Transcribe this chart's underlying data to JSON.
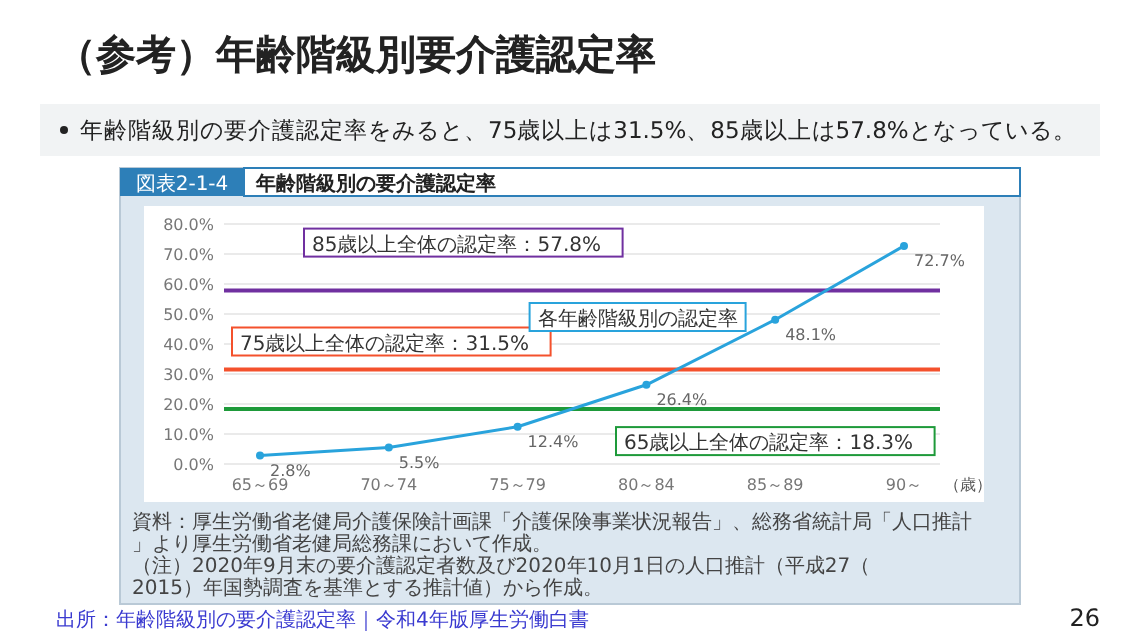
{
  "chart_data": {
    "type": "line",
    "title": "（参考）年齢階級別要介護認定率",
    "subtitle": "年齢階級別の要介護認定率をみると、75歳以上は31.5%、85歳以上は57.8%となっている。",
    "annotations": [
      "図表2-1-4",
      "年齢階級別の要介護認定率",
      "資料：厚生労働省老健局介護保険計画課「介護保険事業状況報告」、総務省統計局「人口推計」より厚生労働省老健局総務課において作成。",
      "（注）2020年9月末の要介護認定者数及び2020年10月1日の人口推計（平成27（2015）年国勢調査を基準とする推計値）から作成。",
      "出所：年齢階級別の要介護認定率｜令和4年版厚生労働白書",
      "26"
    ],
    "categories": [
      "65～69",
      "70～74",
      "75～79",
      "80～84",
      "85～89",
      "90～"
    ],
    "xlabel": "（歳）",
    "series": [
      {
        "name": "各年齢階級別の認定率",
        "color": "#29a3dc",
        "values": [
          2.8,
          5.5,
          12.4,
          26.4,
          48.1,
          72.7
        ],
        "value_labels": [
          "2.8%",
          "5.5%",
          "12.4%",
          "26.4%",
          "48.1%",
          "72.7%"
        ]
      }
    ],
    "ylim": [
      0,
      80
    ],
    "yticks": [
      {
        "value": 0,
        "label": "0.0%"
      },
      {
        "value": 10,
        "label": "10.0%"
      },
      {
        "value": 20,
        "label": "20.0%"
      },
      {
        "value": 30,
        "label": "30.0%"
      },
      {
        "value": 40,
        "label": "40.0%"
      },
      {
        "value": 50,
        "label": "50.0%"
      },
      {
        "value": 60,
        "label": "60.0%"
      },
      {
        "value": 70,
        "label": "70.0%"
      },
      {
        "value": 80,
        "label": "80.0%"
      }
    ],
    "ref_lines": [
      {
        "axis": "y",
        "value": 57.8,
        "label": "85歳以上全体の認定率：57.8%",
        "color": "#7030a0"
      },
      {
        "axis": "y",
        "value": 31.5,
        "label": "75歳以上全体の認定率：31.5%",
        "color": "#f4512c"
      },
      {
        "axis": "y",
        "value": 18.3,
        "label": "65歳以上全体の認定率：18.3%",
        "color": "#1e9a3a"
      }
    ],
    "grid": "y",
    "marker": "circle",
    "line_style": "solid"
  }
}
